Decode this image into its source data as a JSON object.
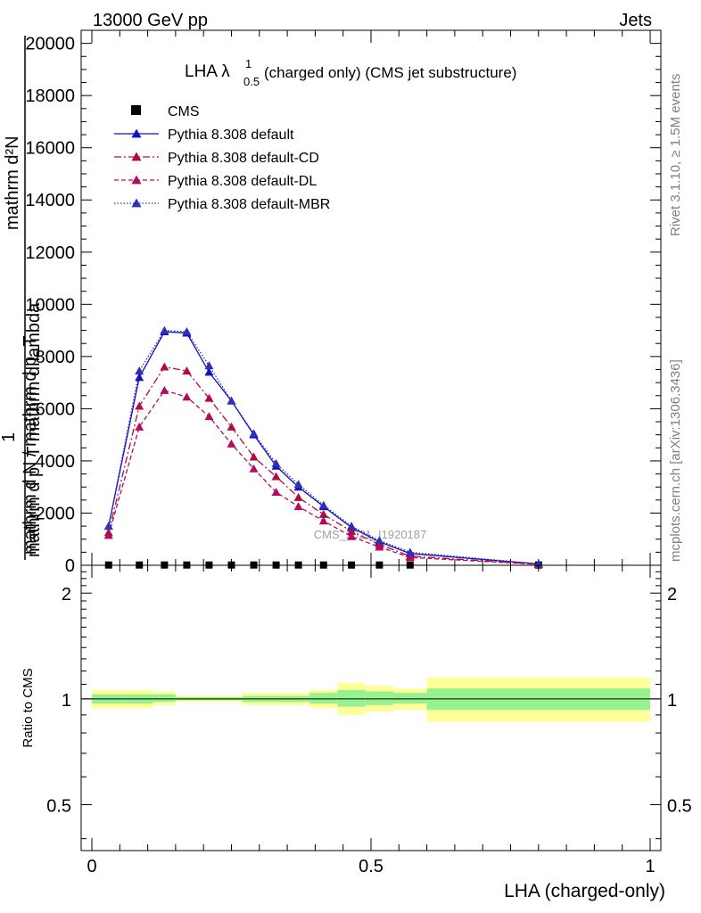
{
  "header": {
    "left": "13000 GeV pp",
    "right": "Jets"
  },
  "side_labels": {
    "rivet": "Rivet 3.1.10, ≥ 1.5M events",
    "mcplots": "mcplots.cern.ch [arXiv:1306.3436]"
  },
  "chart_data": [
    {
      "type": "line",
      "title": "LHA λ",
      "title_sup": "1",
      "title_sub": "0.5",
      "title_rest": " (charged only) (CMS jet substructure)",
      "ylabel_top": "mathrm d²N",
      "ylabel_bottom": "mathrm d p_T mathrm d lambda",
      "ylabel_prefix": "1",
      "ylabel_den": "mathrm d N / mathrm d p_T",
      "watermark": "CMS_2021_I1920187",
      "xlim": [
        0,
        1
      ],
      "ylim": [
        0,
        20500
      ],
      "yticks": [
        0,
        2000,
        4000,
        6000,
        8000,
        10000,
        12000,
        14000,
        16000,
        18000,
        20000
      ],
      "ytick_labels": [
        "0",
        "2000",
        "4000",
        "6000",
        "8000",
        "10000",
        "12000",
        "14000",
        "16000",
        "18000",
        "20000"
      ],
      "legend_placement": "top-left",
      "series": [
        {
          "name": "CMS",
          "style": "markers",
          "color": "#000000",
          "x": [
            0.03,
            0.085,
            0.13,
            0.17,
            0.21,
            0.25,
            0.29,
            0.33,
            0.37,
            0.415,
            0.465,
            0.515,
            0.57,
            0.8
          ],
          "values": [
            10,
            10,
            10,
            10,
            10,
            10,
            10,
            10,
            10,
            10,
            10,
            10,
            10,
            10
          ]
        },
        {
          "name": "Pythia 8.308 default",
          "style": "solid",
          "color": "#1010c8",
          "x": [
            0.03,
            0.085,
            0.13,
            0.17,
            0.21,
            0.25,
            0.29,
            0.33,
            0.37,
            0.415,
            0.465,
            0.515,
            0.57,
            0.8
          ],
          "values": [
            1500,
            7200,
            8950,
            8900,
            7400,
            6300,
            5000,
            3800,
            3000,
            2250,
            1450,
            900,
            450,
            50
          ]
        },
        {
          "name": "Pythia 8.308 default-CD",
          "style": "dashdot",
          "color": "#b00c40",
          "x": [
            0.03,
            0.085,
            0.13,
            0.17,
            0.21,
            0.25,
            0.29,
            0.33,
            0.37,
            0.415,
            0.465,
            0.515,
            0.57,
            0.8
          ],
          "values": [
            1250,
            6100,
            7600,
            7450,
            6400,
            5300,
            4150,
            3400,
            2600,
            1950,
            1300,
            800,
            350,
            40
          ]
        },
        {
          "name": "Pythia 8.308 default-DL",
          "style": "dashed",
          "color": "#b00c60",
          "x": [
            0.03,
            0.085,
            0.13,
            0.17,
            0.21,
            0.25,
            0.29,
            0.33,
            0.37,
            0.415,
            0.465,
            0.515,
            0.57,
            0.8
          ],
          "values": [
            1150,
            5300,
            6700,
            6450,
            5700,
            4650,
            3700,
            2800,
            2250,
            1700,
            1100,
            700,
            300,
            35
          ]
        },
        {
          "name": "Pythia 8.308 default-MBR",
          "style": "dotted",
          "color": "#3030b0",
          "x": [
            0.03,
            0.085,
            0.13,
            0.17,
            0.21,
            0.25,
            0.29,
            0.33,
            0.37,
            0.415,
            0.465,
            0.515,
            0.57,
            0.8
          ],
          "values": [
            1500,
            7450,
            9000,
            8950,
            7650,
            6300,
            5050,
            3900,
            3100,
            2300,
            1500,
            950,
            500,
            55
          ]
        }
      ]
    },
    {
      "type": "area",
      "ylabel": "Ratio to CMS",
      "xlabel": "LHA (charged-only)",
      "xlim": [
        0,
        1
      ],
      "ylim": [
        0.37,
        2.4
      ],
      "log_y": true,
      "xticks": [
        0,
        0.5,
        1
      ],
      "xtick_labels": [
        "0",
        "0.5",
        "1"
      ],
      "yticks": [
        0.5,
        1,
        2
      ],
      "ytick_labels": [
        "0.5",
        "1",
        "2"
      ],
      "band_colors": {
        "inner": "#96f28e",
        "outer": "#ffff99"
      },
      "bins": [
        {
          "lo": 0.0,
          "hi": 0.06,
          "inner": [
            0.97,
            1.03
          ],
          "outer": [
            0.94,
            1.06
          ]
        },
        {
          "lo": 0.06,
          "hi": 0.11,
          "inner": [
            0.97,
            1.03
          ],
          "outer": [
            0.94,
            1.06
          ]
        },
        {
          "lo": 0.11,
          "hi": 0.15,
          "inner": [
            0.98,
            1.03
          ],
          "outer": [
            0.96,
            1.05
          ]
        },
        {
          "lo": 0.15,
          "hi": 0.19,
          "inner": [
            0.99,
            1.01
          ],
          "outer": [
            0.98,
            1.02
          ]
        },
        {
          "lo": 0.19,
          "hi": 0.27,
          "inner": [
            0.99,
            1.01
          ],
          "outer": [
            0.98,
            1.02
          ]
        },
        {
          "lo": 0.27,
          "hi": 0.31,
          "inner": [
            0.98,
            1.02
          ],
          "outer": [
            0.96,
            1.04
          ]
        },
        {
          "lo": 0.31,
          "hi": 0.35,
          "inner": [
            0.98,
            1.02
          ],
          "outer": [
            0.96,
            1.04
          ]
        },
        {
          "lo": 0.35,
          "hi": 0.39,
          "inner": [
            0.98,
            1.02
          ],
          "outer": [
            0.96,
            1.04
          ]
        },
        {
          "lo": 0.39,
          "hi": 0.44,
          "inner": [
            0.97,
            1.04
          ],
          "outer": [
            0.94,
            1.06
          ]
        },
        {
          "lo": 0.44,
          "hi": 0.49,
          "inner": [
            0.95,
            1.06
          ],
          "outer": [
            0.9,
            1.11
          ]
        },
        {
          "lo": 0.49,
          "hi": 0.54,
          "inner": [
            0.96,
            1.05
          ],
          "outer": [
            0.92,
            1.09
          ]
        },
        {
          "lo": 0.54,
          "hi": 0.6,
          "inner": [
            0.97,
            1.04
          ],
          "outer": [
            0.93,
            1.07
          ]
        },
        {
          "lo": 0.6,
          "hi": 1.0,
          "inner": [
            0.93,
            1.07
          ],
          "outer": [
            0.86,
            1.15
          ]
        }
      ]
    }
  ]
}
